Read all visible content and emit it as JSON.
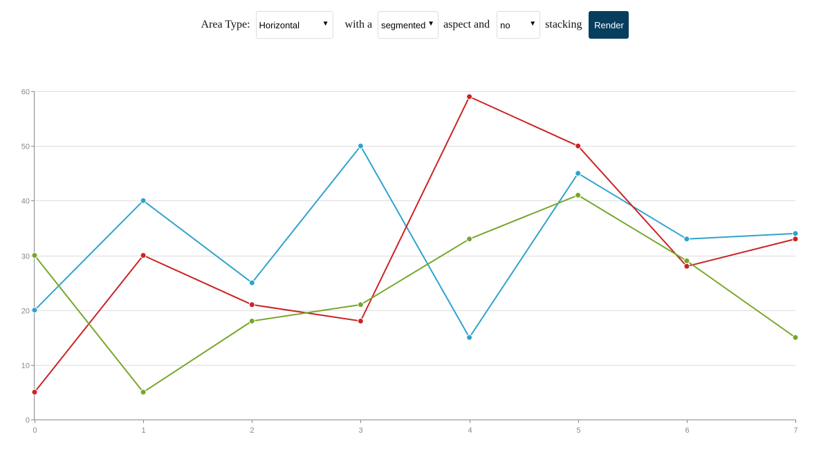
{
  "controls": {
    "area_type_label": "Area Type:",
    "area_type_value": "Horizontal",
    "with_a_label": "with a",
    "aspect_value": "segmented",
    "aspect_label": "aspect and",
    "stacking_value": "no",
    "stacking_label": "stacking",
    "render_label": "Render"
  },
  "chart_data": {
    "type": "line",
    "x": [
      0,
      1,
      2,
      3,
      4,
      5,
      6,
      7
    ],
    "xlim": [
      0,
      7
    ],
    "ylim": [
      0,
      60
    ],
    "yticks": [
      0,
      10,
      20,
      30,
      40,
      50,
      60
    ],
    "xticks": [
      0,
      1,
      2,
      3,
      4,
      5,
      6,
      7
    ],
    "grid": "horizontal",
    "legend": "none",
    "series": [
      {
        "color": "#2ea3cc",
        "values": [
          20,
          40,
          25,
          50,
          15,
          45,
          33,
          34
        ]
      },
      {
        "color": "#cc2222",
        "values": [
          5,
          30,
          21,
          18,
          59,
          50,
          28,
          33
        ]
      },
      {
        "color": "#77a62a",
        "values": [
          30,
          5,
          18,
          21,
          33,
          41,
          29,
          15
        ]
      }
    ]
  }
}
